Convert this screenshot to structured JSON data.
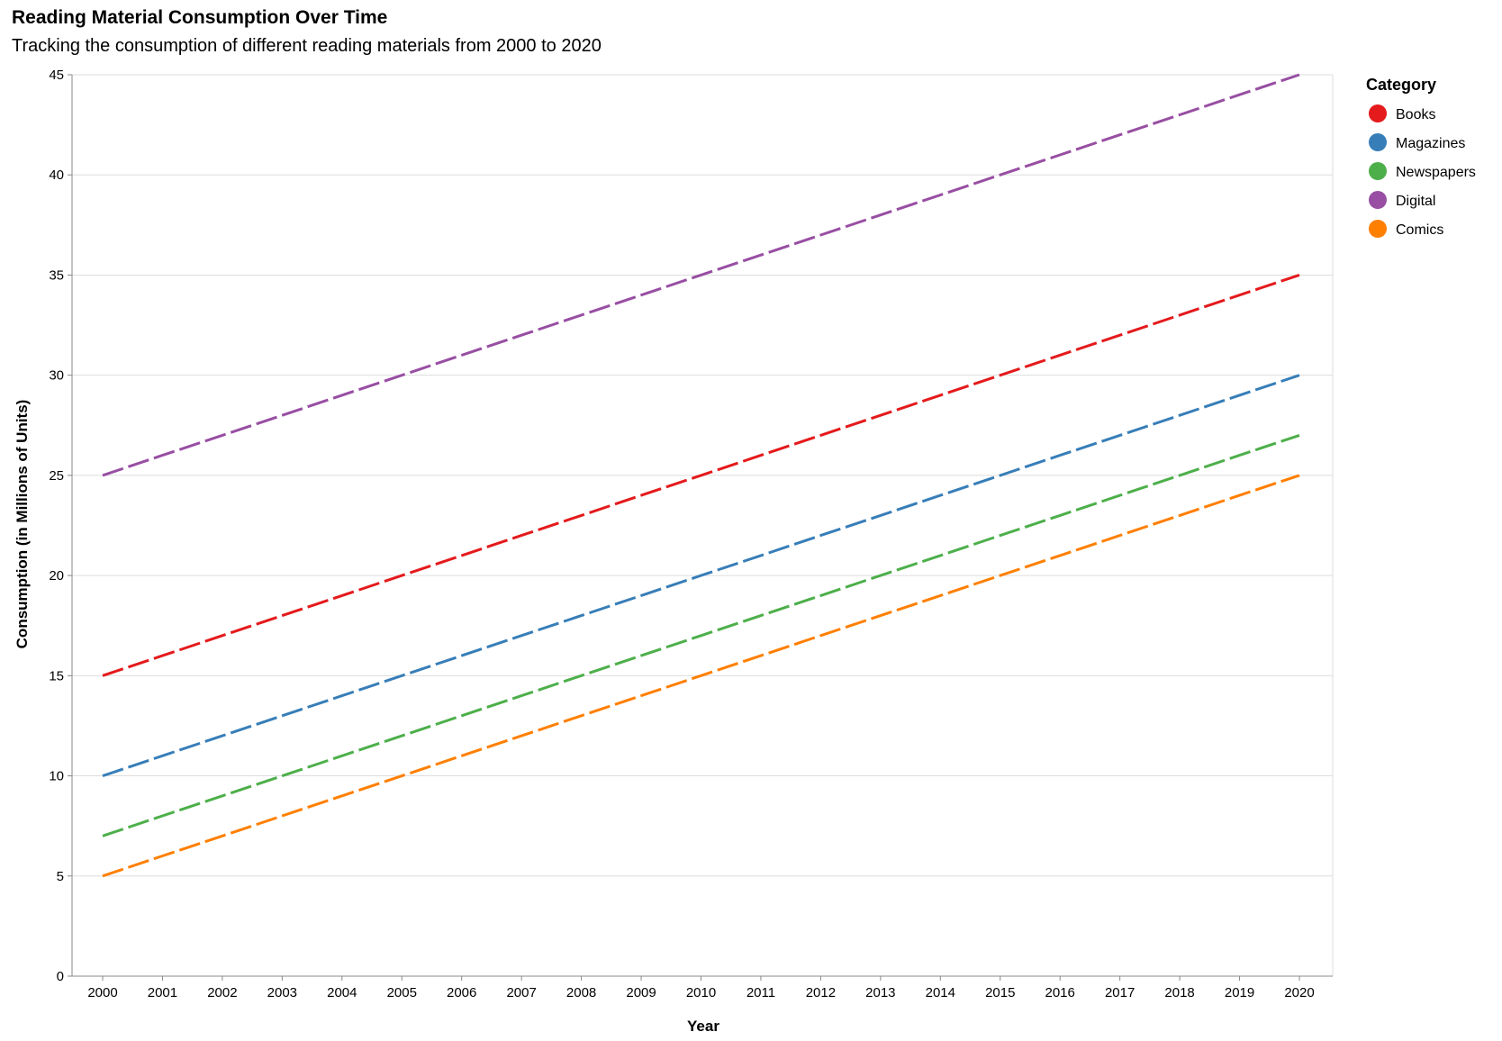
{
  "chart_data": {
    "type": "line",
    "title": "Reading Material Consumption Over Time",
    "subtitle": "Tracking the consumption of different reading materials from 2000 to 2020",
    "xlabel": "Year",
    "ylabel": "Consumption (in Millions of Units)",
    "x": [
      "2000",
      "2001",
      "2002",
      "2003",
      "2004",
      "2005",
      "2006",
      "2007",
      "2008",
      "2009",
      "2010",
      "2011",
      "2012",
      "2013",
      "2014",
      "2015",
      "2016",
      "2017",
      "2018",
      "2019",
      "2020"
    ],
    "ylim": [
      0,
      45
    ],
    "yticks": [
      0,
      5,
      10,
      15,
      20,
      25,
      30,
      35,
      40,
      45
    ],
    "grid": "horizontal",
    "line_style": "dashed",
    "legend": {
      "title": "Category",
      "placement": "top-right"
    },
    "series": [
      {
        "name": "Books",
        "color": "#e41a1c",
        "values": [
          15,
          16,
          17,
          18,
          19,
          20,
          21,
          22,
          23,
          24,
          25,
          26,
          27,
          28,
          29,
          30,
          31,
          32,
          33,
          34,
          35
        ]
      },
      {
        "name": "Magazines",
        "color": "#377eb8",
        "values": [
          10,
          11,
          12,
          13,
          14,
          15,
          16,
          17,
          18,
          19,
          20,
          21,
          22,
          23,
          24,
          25,
          26,
          27,
          28,
          29,
          30
        ]
      },
      {
        "name": "Newspapers",
        "color": "#4daf4a",
        "values": [
          7,
          8,
          9,
          10,
          11,
          12,
          13,
          14,
          15,
          16,
          17,
          18,
          19,
          20,
          21,
          22,
          23,
          24,
          25,
          26,
          27
        ]
      },
      {
        "name": "Digital",
        "color": "#984ea3",
        "values": [
          25,
          26,
          27,
          28,
          29,
          30,
          31,
          32,
          33,
          34,
          35,
          36,
          37,
          38,
          39,
          40,
          41,
          42,
          43,
          44,
          45
        ]
      },
      {
        "name": "Comics",
        "color": "#ff7f00",
        "values": [
          5,
          6,
          7,
          8,
          9,
          10,
          11,
          12,
          13,
          14,
          15,
          16,
          17,
          18,
          19,
          20,
          21,
          22,
          23,
          24,
          25
        ]
      }
    ]
  }
}
